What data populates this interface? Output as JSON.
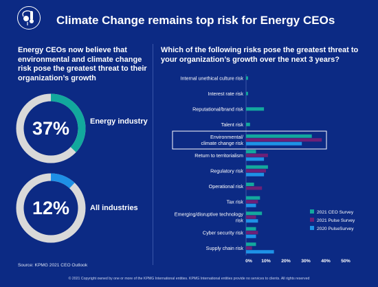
{
  "header": {
    "title": "Climate Change remains top risk for Energy CEOs"
  },
  "left_panel": {
    "heading": "Energy CEOs now believe that environmental and climate change risk pose the greatest threat to their organization’s growth",
    "donuts": [
      {
        "value": 37,
        "label_pct": "37%",
        "label": "Energy industry"
      },
      {
        "value": 12,
        "label_pct": "12%",
        "label": "All industries"
      }
    ],
    "source": "Source: KPMG 2021 CEO Outlook"
  },
  "right_panel": {
    "heading": "Which of the following risks pose the greatest threat to your organization’s growth over the next 3 years?"
  },
  "footer": "© 2021 Copyright owned by one or more of the KPMG International entities. KPMG International entities provide no services to clients. All rights reserved",
  "colors": {
    "background": "#0c2a84",
    "ceo_survey": "#13a89e",
    "pulse_survey": "#6d2077",
    "pulse_survey_2020": "#1e92e6",
    "donut_track": "#d9d9d9",
    "donut_teal": "#12a89d",
    "donut_blue": "#1e90e6"
  },
  "chart_data": {
    "type": "bar",
    "orientation": "horizontal",
    "categories": [
      "Internal unethical culture risk",
      "Interest rate risk",
      "Reputational/brand risk",
      "Talent risk",
      "Environmental/ climate change risk",
      "Return to territorialism",
      "Regulatory risk",
      "Operational risk",
      "Tax risk",
      "Emerging/disruptive technology risk",
      "Cyber security risk",
      "Supply chain risk"
    ],
    "series": [
      {
        "name": "2021 CEO Survey",
        "values": [
          1,
          1,
          9,
          2,
          33,
          5,
          11,
          4,
          7,
          8,
          5,
          5
        ]
      },
      {
        "name": "2021 Pulse Survey",
        "values": [
          null,
          null,
          null,
          null,
          38,
          11,
          10,
          8,
          6,
          5,
          6,
          3
        ]
      },
      {
        "name": "2020 PulseSurvey",
        "values": [
          null,
          null,
          null,
          null,
          28,
          9,
          9,
          null,
          5,
          6,
          5,
          14
        ]
      }
    ],
    "xticks": [
      "0%",
      "10%",
      "20%",
      "30%",
      "40%",
      "50%"
    ],
    "xlim": [
      0,
      50
    ],
    "highlight": "Environmental/ climate change risk",
    "legend_position": "bottom-right"
  }
}
